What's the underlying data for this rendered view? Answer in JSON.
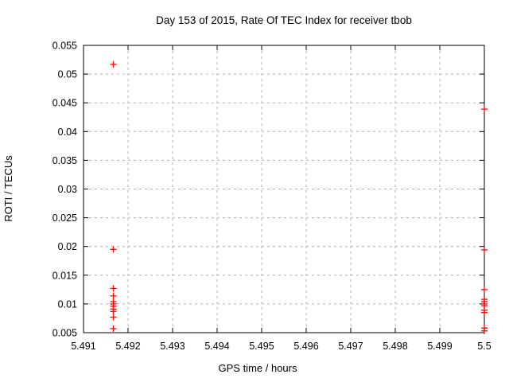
{
  "page": {
    "background": "#ffffff",
    "frame_color": "#000000",
    "text_color": "#000000"
  },
  "chart_data": {
    "type": "scatter",
    "title": "Day 153 of 2015, Rate Of TEC Index for receiver tbob",
    "xlabel": "GPS time / hours",
    "ylabel": "ROTI / TECUs",
    "xlim": [
      5.491,
      5.5
    ],
    "ylim": [
      0.005,
      0.055
    ],
    "xticks": [
      5.491,
      5.492,
      5.493,
      5.494,
      5.495,
      5.496,
      5.497,
      5.498,
      5.499,
      5.5
    ],
    "xtick_labels": [
      "5.491",
      "5.492",
      "5.493",
      "5.494",
      "5.495",
      "5.496",
      "5.497",
      "5.498",
      "5.499",
      "5.5"
    ],
    "yticks": [
      0.005,
      0.01,
      0.015,
      0.02,
      0.025,
      0.03,
      0.035,
      0.04,
      0.045,
      0.05,
      0.055
    ],
    "ytick_labels": [
      "0.005",
      "0.01",
      "0.015",
      "0.02",
      "0.025",
      "0.03",
      "0.035",
      "0.04",
      "0.045",
      "0.05",
      "0.055"
    ],
    "grid": true,
    "legend_position": "none",
    "marker": "plus",
    "marker_color": "#ff0000",
    "grid_color": "#b0b0b0",
    "series": [
      {
        "name": "roti",
        "x": [
          5.49167,
          5.49167,
          5.49167,
          5.49167,
          5.49167,
          5.49167,
          5.49167,
          5.49167,
          5.49167,
          5.49167,
          5.49167,
          5.5,
          5.5,
          5.5,
          5.5,
          5.5,
          5.5,
          5.5,
          5.5,
          5.5,
          5.5,
          5.5
        ],
        "y": [
          0.0517,
          0.0195,
          0.0127,
          0.0114,
          0.0104,
          0.01,
          0.0096,
          0.0091,
          0.0087,
          0.0077,
          0.0057,
          0.0439,
          0.0194,
          0.0125,
          0.0108,
          0.0104,
          0.01,
          0.0097,
          0.0089,
          0.0085,
          0.0058,
          0.0053
        ]
      }
    ]
  }
}
